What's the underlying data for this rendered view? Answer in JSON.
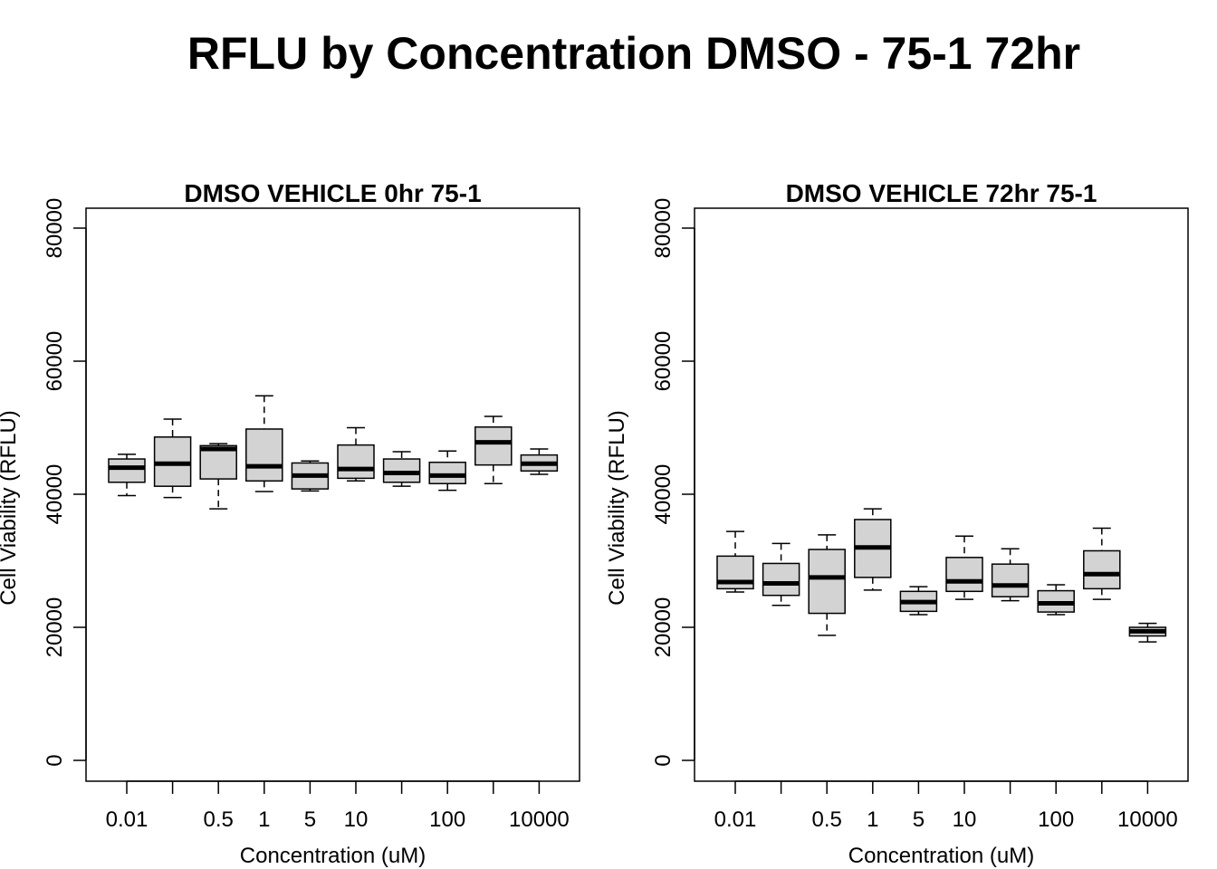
{
  "title": "RFLU by Concentration DMSO - 75-1 72hr",
  "colors": {
    "box_fill": "#d3d3d3",
    "stroke": "#000000"
  },
  "chart_data": [
    {
      "type": "box",
      "title": "DMSO VEHICLE 0hr 75-1",
      "xlabel": "Concentration (uM)",
      "ylabel": "Cell Viability (RFLU)",
      "ylim": [
        0,
        80000
      ],
      "yticks": [
        0,
        20000,
        40000,
        60000,
        80000
      ],
      "xtick_labels": [
        "0.01",
        "",
        "0.5",
        "1",
        "5",
        "10",
        "",
        "100",
        "",
        "10000"
      ],
      "boxes": [
        {
          "min": 39800,
          "q1": 41800,
          "median": 44000,
          "q3": 45300,
          "max": 46000
        },
        {
          "min": 39500,
          "q1": 41200,
          "median": 44600,
          "q3": 48600,
          "max": 51300
        },
        {
          "min": 37800,
          "q1": 42300,
          "median": 46800,
          "q3": 47300,
          "max": 47600
        },
        {
          "min": 40400,
          "q1": 42000,
          "median": 44200,
          "q3": 49800,
          "max": 54800
        },
        {
          "min": 40500,
          "q1": 40800,
          "median": 42800,
          "q3": 44700,
          "max": 45000
        },
        {
          "min": 42000,
          "q1": 42400,
          "median": 43800,
          "q3": 47400,
          "max": 50000
        },
        {
          "min": 41200,
          "q1": 41800,
          "median": 43200,
          "q3": 45300,
          "max": 46400
        },
        {
          "min": 40600,
          "q1": 41600,
          "median": 42800,
          "q3": 44800,
          "max": 46500
        },
        {
          "min": 41600,
          "q1": 44400,
          "median": 47800,
          "q3": 50100,
          "max": 51700
        },
        {
          "min": 43000,
          "q1": 43500,
          "median": 44600,
          "q3": 45900,
          "max": 46800
        }
      ]
    },
    {
      "type": "box",
      "title": "DMSO VEHICLE 72hr 75-1",
      "xlabel": "Concentration (uM)",
      "ylabel": "Cell Viability (RFLU)",
      "ylim": [
        0,
        80000
      ],
      "yticks": [
        0,
        20000,
        40000,
        60000,
        80000
      ],
      "xtick_labels": [
        "0.01",
        "",
        "0.5",
        "1",
        "5",
        "10",
        "",
        "100",
        "",
        "10000"
      ],
      "boxes": [
        {
          "min": 25300,
          "q1": 25800,
          "median": 26800,
          "q3": 30700,
          "max": 34400
        },
        {
          "min": 23300,
          "q1": 24800,
          "median": 26600,
          "q3": 29600,
          "max": 32600
        },
        {
          "min": 18800,
          "q1": 22100,
          "median": 27500,
          "q3": 31700,
          "max": 33900
        },
        {
          "min": 25600,
          "q1": 27500,
          "median": 32000,
          "q3": 36200,
          "max": 37800
        },
        {
          "min": 21900,
          "q1": 22400,
          "median": 23800,
          "q3": 25400,
          "max": 26100
        },
        {
          "min": 24200,
          "q1": 25400,
          "median": 26900,
          "q3": 30500,
          "max": 33700
        },
        {
          "min": 24000,
          "q1": 24600,
          "median": 26300,
          "q3": 29500,
          "max": 31800
        },
        {
          "min": 21900,
          "q1": 22300,
          "median": 23600,
          "q3": 25500,
          "max": 26400
        },
        {
          "min": 24200,
          "q1": 25800,
          "median": 28000,
          "q3": 31500,
          "max": 34900
        },
        {
          "min": 17800,
          "q1": 18700,
          "median": 19400,
          "q3": 20000,
          "max": 20600
        }
      ]
    }
  ]
}
